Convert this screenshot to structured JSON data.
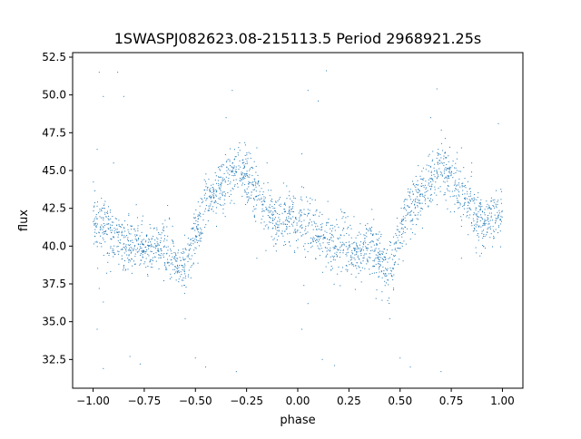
{
  "chart_data": {
    "type": "scatter",
    "title": "1SWASPJ082623.08-215113.5 Period 2968921.25s",
    "xlabel": "phase",
    "ylabel": "flux",
    "xlim": [
      -1.1,
      1.1
    ],
    "ylim": [
      30.6,
      52.8
    ],
    "xticks": [
      -1.0,
      -0.75,
      -0.5,
      -0.25,
      0.0,
      0.25,
      0.5,
      0.75,
      1.0
    ],
    "xtick_labels": [
      "−1.00",
      "−0.75",
      "−0.50",
      "−0.25",
      "0.00",
      "0.25",
      "0.50",
      "0.75",
      "1.00"
    ],
    "yticks": [
      32.5,
      35.0,
      37.5,
      40.0,
      42.5,
      45.0,
      47.5,
      50.0,
      52.5
    ],
    "ytick_labels": [
      "32.5",
      "35.0",
      "37.5",
      "40.0",
      "42.5",
      "45.0",
      "47.5",
      "50.0",
      "52.5"
    ],
    "grid": false,
    "legend": "none",
    "marker_color": "#1f77b4",
    "profile_description": "phase-folded light curve, pattern repeats with period 1 in phase",
    "profile": {
      "phase": [
        -1.0,
        -0.95,
        -0.9,
        -0.85,
        -0.8,
        -0.75,
        -0.7,
        -0.65,
        -0.6,
        -0.55,
        -0.5,
        -0.45,
        -0.4,
        -0.35,
        -0.3,
        -0.25,
        -0.2,
        -0.15,
        -0.1,
        -0.05,
        0.0
      ],
      "flux": [
        41.8,
        41.5,
        40.6,
        40.1,
        40.0,
        39.9,
        39.7,
        40.1,
        39.2,
        38.3,
        40.6,
        42.6,
        43.4,
        44.2,
        45.2,
        44.6,
        43.3,
        42.3,
        41.5,
        42.0,
        41.8
      ]
    },
    "scatter_spread": 0.9,
    "outliers": [
      {
        "x": -0.97,
        "y": 51.5
      },
      {
        "x": -0.88,
        "y": 51.5
      },
      {
        "x": -0.95,
        "y": 49.9
      },
      {
        "x": -0.85,
        "y": 49.9
      },
      {
        "x": -0.98,
        "y": 46.4
      },
      {
        "x": -0.9,
        "y": 45.5
      },
      {
        "x": -0.32,
        "y": 50.3
      },
      {
        "x": -0.35,
        "y": 48.5
      },
      {
        "x": -0.2,
        "y": 46.5
      },
      {
        "x": -0.15,
        "y": 45.5
      },
      {
        "x": -0.97,
        "y": 37.2
      },
      {
        "x": -0.95,
        "y": 36.3
      },
      {
        "x": -0.98,
        "y": 34.5
      },
      {
        "x": -0.82,
        "y": 32.7
      },
      {
        "x": -0.77,
        "y": 32.2
      },
      {
        "x": -0.95,
        "y": 31.9
      },
      {
        "x": -0.55,
        "y": 35.2
      },
      {
        "x": -0.5,
        "y": 32.6
      },
      {
        "x": -0.45,
        "y": 32.0
      },
      {
        "x": -0.3,
        "y": 31.7
      },
      {
        "x": -0.2,
        "y": 39.2
      },
      {
        "x": 0.05,
        "y": 50.3
      },
      {
        "x": 0.1,
        "y": 49.6
      },
      {
        "x": 0.02,
        "y": 46.1
      },
      {
        "x": 0.14,
        "y": 51.6
      },
      {
        "x": 0.03,
        "y": 37.4
      },
      {
        "x": 0.05,
        "y": 36.2
      },
      {
        "x": 0.02,
        "y": 34.5
      },
      {
        "x": 0.12,
        "y": 32.5
      },
      {
        "x": 0.18,
        "y": 32.1
      },
      {
        "x": 0.45,
        "y": 35.2
      },
      {
        "x": 0.5,
        "y": 32.6
      },
      {
        "x": 0.55,
        "y": 32.0
      },
      {
        "x": 0.7,
        "y": 31.7
      },
      {
        "x": 0.68,
        "y": 50.4
      },
      {
        "x": 0.65,
        "y": 48.5
      },
      {
        "x": 0.8,
        "y": 46.5
      },
      {
        "x": 0.85,
        "y": 45.5
      },
      {
        "x": 0.8,
        "y": 39.2
      },
      {
        "x": 0.98,
        "y": 48.1
      }
    ]
  }
}
